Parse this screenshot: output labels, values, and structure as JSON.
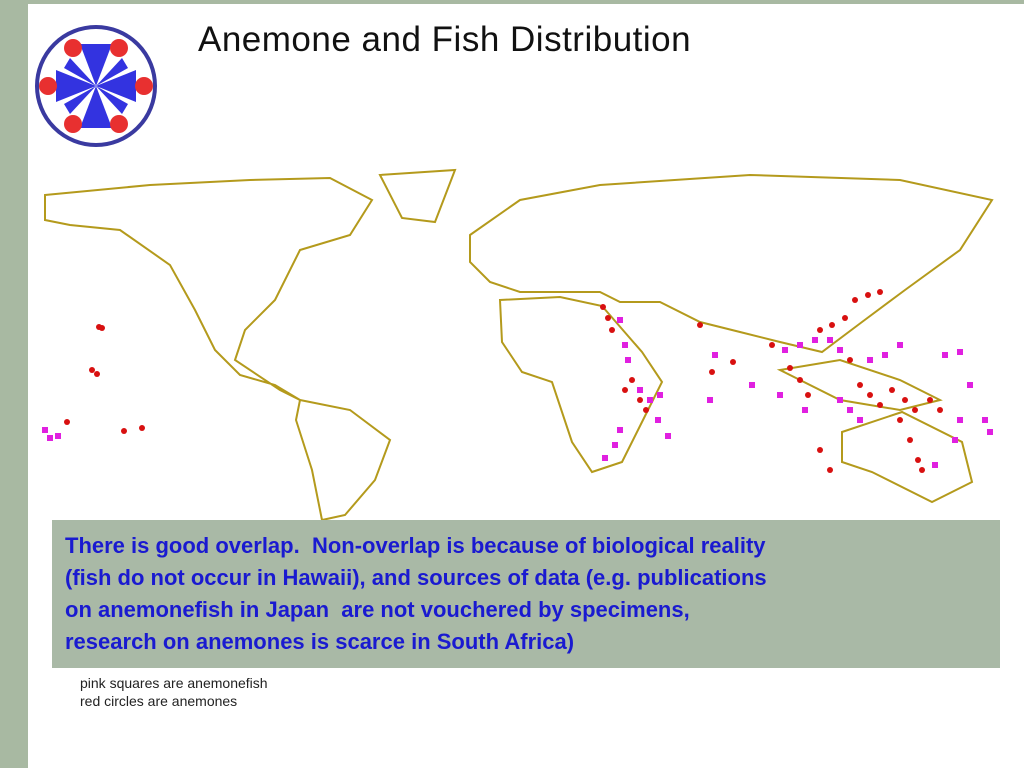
{
  "title": "Anemone and Fish Distribution",
  "callout": {
    "lines": [
      "There is good overlap.  Non-overlap is because of biological reality",
      "(fish do not occur in Hawaii), and sources of data (e.g. publications",
      "on anemonefish in Japan  are not vouchered by specimens,",
      "research on anemones is scarce in South Africa)"
    ]
  },
  "legend": [
    "pink squares are anemonefish",
    "red circles are anemones"
  ]
}
